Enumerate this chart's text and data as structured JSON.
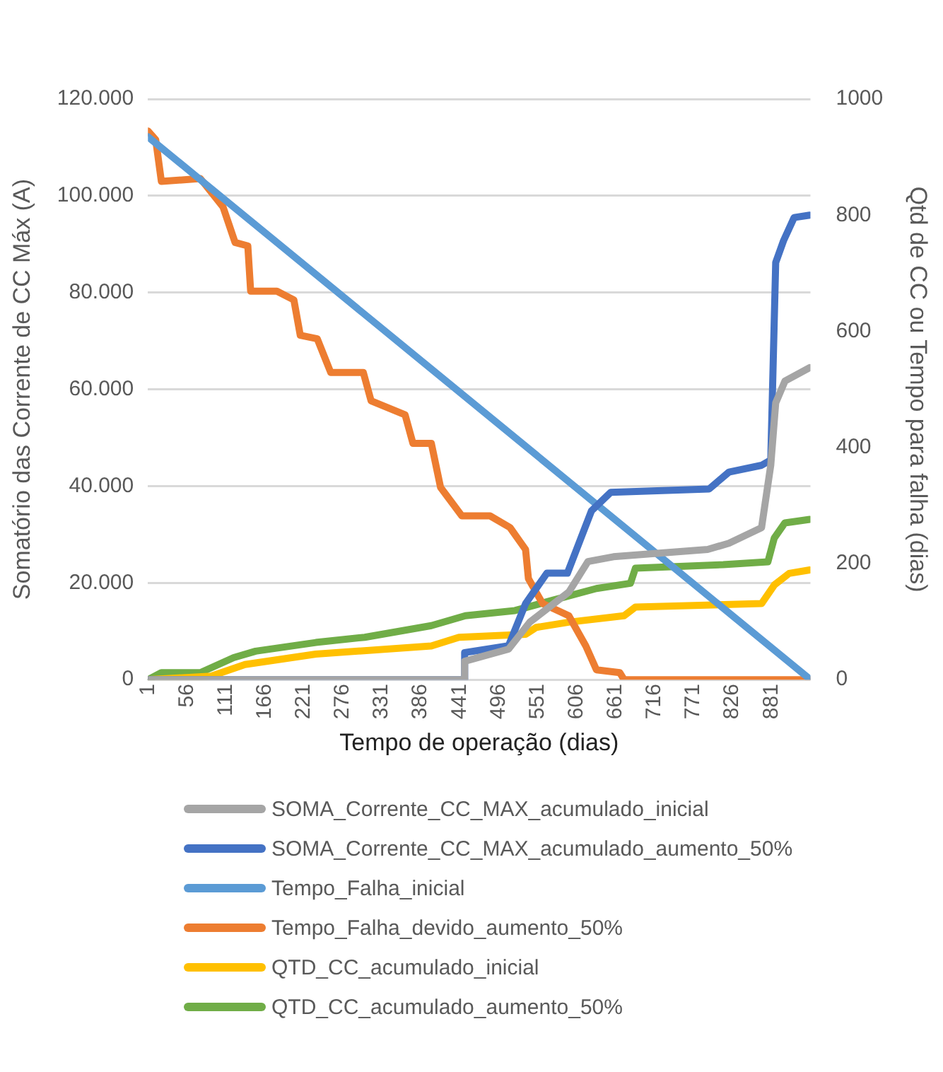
{
  "chart_data": {
    "type": "line",
    "xlabel": "Tempo de operação (dias)",
    "ylabel": "Somatório das Corrente de CC Máx (A)",
    "y2label": "Qtd de CC ou Tempo para falha (dias)",
    "xlim": [
      1,
      936
    ],
    "xticks": [
      1,
      56,
      111,
      166,
      221,
      276,
      331,
      386,
      441,
      496,
      551,
      606,
      661,
      716,
      771,
      826,
      881
    ],
    "ylim": [
      0,
      120000
    ],
    "yticks": [
      0,
      {
        "value": 20000,
        "label": "20.000"
      },
      {
        "value": 40000,
        "label": "40.000"
      },
      {
        "value": 60000,
        "label": "60.000"
      },
      {
        "value": 80000,
        "label": "80.000"
      },
      {
        "value": 100000,
        "label": "100.000"
      },
      {
        "value": 120000,
        "label": "120.000"
      }
    ],
    "y2lim": [
      0,
      1000
    ],
    "y2ticks": [
      0,
      200,
      400,
      600,
      800,
      1000
    ],
    "grid": "y",
    "legend": "bottom",
    "line_style": "solid",
    "marker": "none",
    "series": [
      {
        "name": "SOMA_Corrente_CC_MAX_acumulado_inicial",
        "color": "#a5a5a5",
        "x": [
          1,
          447,
          448,
          510,
          540,
          595,
          622,
          658,
          791,
          821,
          867,
          880,
          887,
          900,
          935
        ],
        "values": [
          0,
          0,
          3800,
          6300,
          11900,
          18100,
          24400,
          25400,
          26900,
          28200,
          31400,
          44300,
          57200,
          61700,
          64500
        ]
      },
      {
        "name": "SOMA_Corrente_CC_MAX_acumulado_aumento_50%",
        "color": "#4472c4",
        "x": [
          1,
          447,
          448,
          510,
          534,
          564,
          593,
          627,
          654,
          793,
          821,
          867,
          880,
          887,
          898,
          913,
          935
        ],
        "values": [
          0,
          0,
          5600,
          7000,
          15700,
          22000,
          22000,
          34900,
          38700,
          39400,
          42900,
          44300,
          45400,
          86200,
          90700,
          95500,
          96000
        ]
      },
      {
        "name": "Tempo_Falha_inicial",
        "color": "#5b9bd5",
        "axis": "y2",
        "x": [
          1,
          936
        ],
        "values": [
          935,
          0
        ]
      },
      {
        "name": "Tempo_Falha_devido_aumento_50%",
        "color": "#ed7d31",
        "axis": "y2",
        "x": [
          1,
          12,
          20,
          75,
          107,
          124,
          142,
          146,
          183,
          207,
          216,
          240,
          259,
          305,
          316,
          364,
          375,
          401,
          414,
          444,
          484,
          512,
          534,
          538,
          558,
          595,
          619,
          634,
          667,
          673,
          936
        ],
        "values": [
          945,
          930,
          858,
          863,
          814,
          753,
          747,
          669,
          669,
          654,
          593,
          587,
          529,
          529,
          480,
          456,
          407,
          407,
          331,
          282,
          282,
          262,
          224,
          174,
          131,
          110,
          58,
          17,
          12,
          0,
          0
        ]
      },
      {
        "name": "QTD_CC_acumulado_inicial",
        "color": "#ffc000",
        "axis": "y2",
        "x": [
          1,
          90,
          138,
          238,
          401,
          440,
          534,
          549,
          595,
          673,
          689,
          867,
          885,
          906,
          935
        ],
        "values": [
          0,
          6,
          26,
          44,
          58,
          73,
          78,
          90,
          99,
          110,
          125,
          131,
          163,
          183,
          189
        ]
      },
      {
        "name": "QTD_CC_acumulado_aumento_50%",
        "color": "#70ad47",
        "axis": "y2",
        "x": [
          1,
          20,
          75,
          122,
          153,
          238,
          307,
          401,
          449,
          519,
          573,
          634,
          682,
          689,
          813,
          876,
          885,
          900,
          935
        ],
        "values": [
          0,
          12,
          12,
          38,
          49,
          64,
          73,
          93,
          110,
          119,
          137,
          157,
          166,
          192,
          198,
          203,
          244,
          270,
          276
        ]
      }
    ]
  }
}
